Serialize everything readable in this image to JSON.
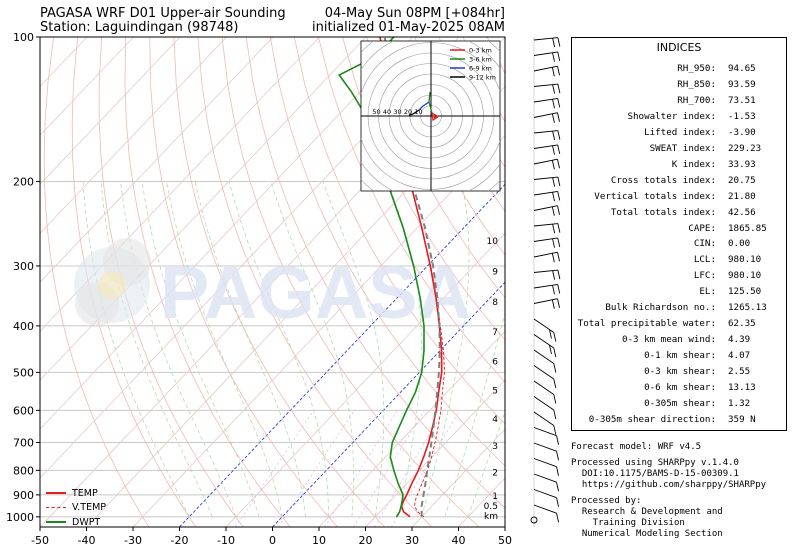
{
  "header": {
    "title_left": "PAGASA WRF D01 Upper-air Sounding",
    "station": "Station: Laguindingan (98748)",
    "valid": "04-May Sun 08PM [+084hr]",
    "init": "initialized 01-May-2025 08AM"
  },
  "watermark": "PAGASA",
  "legend": [
    {
      "label": "TEMP",
      "color": "#e41a1c",
      "style": "solid"
    },
    {
      "label": "V.TEMP",
      "color": "#e41a1c",
      "style": "dashed"
    },
    {
      "label": "DWPT",
      "color": "#1a8a1a",
      "style": "solid"
    }
  ],
  "hodograph_legend": [
    "0-3 km",
    "3-6 km",
    "6-9 km",
    "9-12 km"
  ],
  "hodograph_rings": [
    "50",
    "40",
    "30",
    "20",
    "10"
  ],
  "height_unit": "km",
  "indices_title": "INDICES",
  "indices": [
    {
      "name": "RH_950:",
      "value": "94.65"
    },
    {
      "name": "RH_850:",
      "value": "93.59"
    },
    {
      "name": "RH_700:",
      "value": "73.51"
    },
    {
      "name": "Showalter index:",
      "value": "-1.53"
    },
    {
      "name": "Lifted index:",
      "value": "-3.90"
    },
    {
      "name": "SWEAT index:",
      "value": "229.23"
    },
    {
      "name": "K index:",
      "value": "33.93"
    },
    {
      "name": "Cross totals index:",
      "value": "20.75"
    },
    {
      "name": "Vertical totals index:",
      "value": "21.80"
    },
    {
      "name": "Total totals index:",
      "value": "42.56"
    },
    {
      "name": "CAPE:",
      "value": "1865.85"
    },
    {
      "name": "CIN:",
      "value": "0.00"
    },
    {
      "name": "LCL:",
      "value": "980.10"
    },
    {
      "name": "LFC:",
      "value": "980.10"
    },
    {
      "name": "EL:",
      "value": "125.50"
    },
    {
      "name": "Bulk Richardson no.:",
      "value": "1265.13"
    },
    {
      "name": "Total precipitable water:",
      "value": "62.35"
    },
    {
      "name": "0-3 km mean wind:",
      "value": "4.39"
    },
    {
      "name": "0-1 km shear:",
      "value": "4.07"
    },
    {
      "name": "0-3 km shear:",
      "value": "2.55"
    },
    {
      "name": "0-6 km shear:",
      "value": "13.13"
    },
    {
      "name": "0-305m shear:",
      "value": "1.32"
    },
    {
      "name": "0-305m shear direction:",
      "value": "359 N"
    }
  ],
  "footer": {
    "model": "Forecast model: WRF v4.5",
    "processed": "Processed using SHARPpy v.1.4.0",
    "doi": "  DOI:10.1175/BAMS-D-15-00309.1",
    "url": "  https://github.com/sharppy/SHARPpy",
    "by": "Processed by:",
    "org1": "  Research & Development and",
    "org2": "    Training Division",
    "org3": "  Numerical Modeling Section"
  },
  "chart_data": {
    "type": "line",
    "title": "PAGASA WRF D01 Upper-air Sounding",
    "xlim": [
      -50,
      50
    ],
    "ylim": [
      1000,
      100
    ],
    "y_scale": "log",
    "grid": true,
    "legend_position": "bottom-left",
    "x_ticks": [
      "-50",
      "-40",
      "-30",
      "-20",
      "-10",
      "0",
      "10",
      "20",
      "30",
      "40",
      "50"
    ],
    "y_ticks": [
      "1000",
      "900",
      "800",
      "700",
      "600",
      "500",
      "400",
      "300",
      "200",
      "100"
    ],
    "height_ticks": [
      {
        "label": "0.5",
        "p": 950
      },
      {
        "label": "1",
        "p": 905
      },
      {
        "label": "2",
        "p": 808
      },
      {
        "label": "3",
        "p": 712
      },
      {
        "label": "4",
        "p": 625
      },
      {
        "label": "5",
        "p": 545
      },
      {
        "label": "6",
        "p": 475
      },
      {
        "label": "7",
        "p": 412
      },
      {
        "label": "8",
        "p": 357
      },
      {
        "label": "9",
        "p": 308
      },
      {
        "label": "10",
        "p": 266
      }
    ],
    "series": [
      {
        "name": "TEMP",
        "color": "#e41a1c",
        "points": [
          [
            1000,
            27.5
          ],
          [
            975,
            25.0
          ],
          [
            950,
            23.5
          ],
          [
            925,
            22.8
          ],
          [
            900,
            22.3
          ],
          [
            850,
            21.0
          ],
          [
            800,
            19.8
          ],
          [
            750,
            18.2
          ],
          [
            700,
            16.3
          ],
          [
            650,
            14.0
          ],
          [
            600,
            11.4
          ],
          [
            550,
            8.2
          ],
          [
            500,
            4.8
          ],
          [
            450,
            0.3
          ],
          [
            400,
            -5.2
          ],
          [
            350,
            -11.6
          ],
          [
            300,
            -19.4
          ],
          [
            250,
            -29.0
          ],
          [
            200,
            -41.0
          ],
          [
            175,
            -48.0
          ],
          [
            150,
            -56.0
          ],
          [
            130,
            -64.0
          ],
          [
            120,
            -67.0
          ],
          [
            110,
            -72.0
          ],
          [
            100,
            -77.0
          ]
        ]
      },
      {
        "name": "V.TEMP",
        "color": "#e41a1c",
        "dashed": true,
        "points": [
          [
            1000,
            30.5
          ],
          [
            975,
            28.0
          ],
          [
            950,
            26.3
          ],
          [
            925,
            25.3
          ],
          [
            900,
            24.6
          ],
          [
            850,
            23.2
          ],
          [
            800,
            21.8
          ],
          [
            750,
            19.9
          ],
          [
            700,
            17.7
          ],
          [
            650,
            15.2
          ],
          [
            600,
            12.4
          ],
          [
            550,
            9.0
          ],
          [
            500,
            5.4
          ],
          [
            450,
            0.7
          ],
          [
            400,
            -5.0
          ],
          [
            350,
            -11.5
          ],
          [
            300,
            -19.3
          ]
        ]
      },
      {
        "name": "DWPT",
        "color": "#1a8a1a",
        "points": [
          [
            1000,
            24.6
          ],
          [
            975,
            24.2
          ],
          [
            950,
            23.4
          ],
          [
            925,
            22.5
          ],
          [
            900,
            21.5
          ],
          [
            850,
            18.0
          ],
          [
            800,
            14.5
          ],
          [
            750,
            11.0
          ],
          [
            700,
            8.5
          ],
          [
            650,
            6.8
          ],
          [
            600,
            5.0
          ],
          [
            550,
            3.2
          ],
          [
            500,
            0.5
          ],
          [
            450,
            -3.5
          ],
          [
            400,
            -8.5
          ],
          [
            350,
            -15.0
          ],
          [
            300,
            -23.0
          ],
          [
            250,
            -33.0
          ],
          [
            200,
            -46.0
          ],
          [
            175,
            -53.0
          ],
          [
            150,
            -62.0
          ],
          [
            130,
            -72.0
          ],
          [
            120,
            -78.0
          ],
          [
            110,
            -74.0
          ],
          [
            100,
            -74.0
          ]
        ]
      },
      {
        "name": "Parcel",
        "color": "#808080",
        "dashed": true,
        "points": [
          [
            1000,
            30.0
          ],
          [
            950,
            27.8
          ],
          [
            900,
            25.9
          ],
          [
            850,
            23.9
          ],
          [
            800,
            21.7
          ],
          [
            750,
            19.4
          ],
          [
            700,
            16.9
          ],
          [
            650,
            14.2
          ],
          [
            600,
            11.2
          ],
          [
            550,
            7.9
          ],
          [
            500,
            4.2
          ],
          [
            450,
            -0.1
          ],
          [
            400,
            -5.2
          ],
          [
            350,
            -11.3
          ],
          [
            300,
            -18.8
          ],
          [
            250,
            -28.3
          ],
          [
            200,
            -40.6
          ],
          [
            150,
            -56.3
          ],
          [
            125,
            -65.0
          ],
          [
            110,
            -71.0
          ],
          [
            100,
            -76.0
          ]
        ]
      }
    ]
  }
}
